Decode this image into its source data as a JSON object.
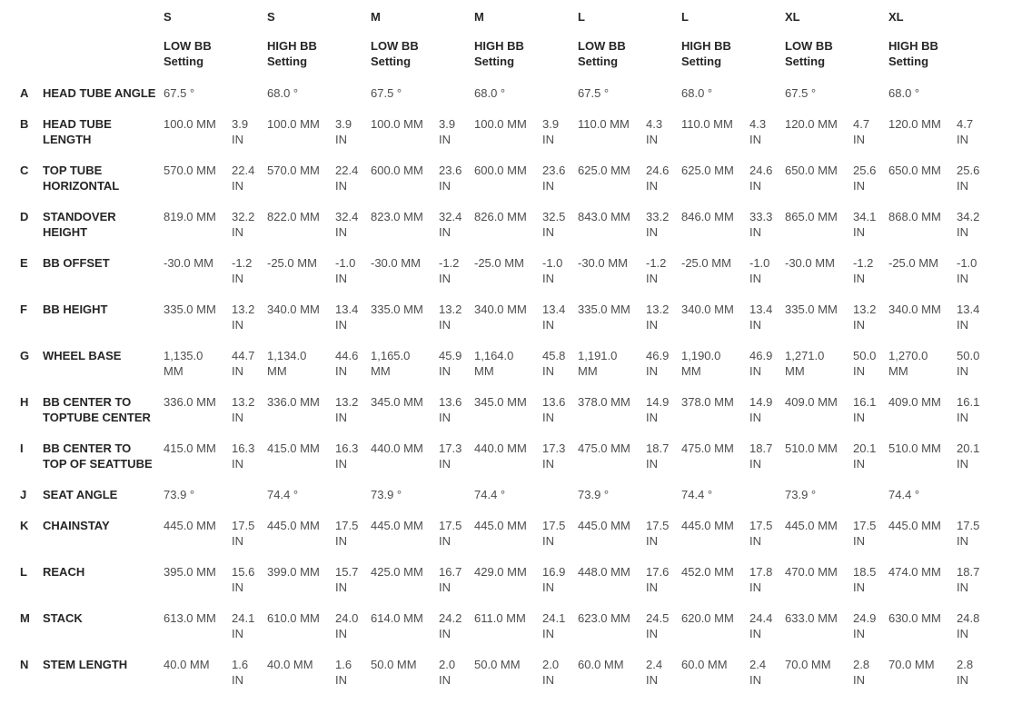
{
  "chart_data": {
    "type": "table",
    "unit_primary": "MM",
    "unit_secondary": "IN",
    "columns": [
      {
        "size": "S",
        "setting": "LOW BB Setting"
      },
      {
        "size": "S",
        "setting": "HIGH BB Setting"
      },
      {
        "size": "M",
        "setting": "LOW BB Setting"
      },
      {
        "size": "M",
        "setting": "HIGH BB Setting"
      },
      {
        "size": "L",
        "setting": "LOW BB Setting"
      },
      {
        "size": "L",
        "setting": "HIGH BB Setting"
      },
      {
        "size": "XL",
        "setting": "LOW BB Setting"
      },
      {
        "size": "XL",
        "setting": "HIGH BB Setting"
      }
    ],
    "rows": [
      {
        "letter": "A",
        "label": "HEAD TUBE ANGLE",
        "type": "angle",
        "values": [
          "67.5 °",
          "68.0 °",
          "67.5 °",
          "68.0 °",
          "67.5 °",
          "68.0 °",
          "67.5 °",
          "68.0 °"
        ]
      },
      {
        "letter": "B",
        "label": "HEAD TUBE LENGTH",
        "type": "length",
        "cells": [
          {
            "mm": "100.0 MM",
            "in": "3.9 IN"
          },
          {
            "mm": "100.0 MM",
            "in": "3.9 IN"
          },
          {
            "mm": "100.0 MM",
            "in": "3.9 IN"
          },
          {
            "mm": "100.0 MM",
            "in": "3.9 IN"
          },
          {
            "mm": "110.0 MM",
            "in": "4.3 IN"
          },
          {
            "mm": "110.0 MM",
            "in": "4.3 IN"
          },
          {
            "mm": "120.0 MM",
            "in": "4.7 IN"
          },
          {
            "mm": "120.0 MM",
            "in": "4.7 IN"
          }
        ]
      },
      {
        "letter": "C",
        "label": "TOP TUBE HORIZONTAL",
        "type": "length",
        "cells": [
          {
            "mm": "570.0 MM",
            "in": "22.4 IN"
          },
          {
            "mm": "570.0 MM",
            "in": "22.4 IN"
          },
          {
            "mm": "600.0 MM",
            "in": "23.6 IN"
          },
          {
            "mm": "600.0 MM",
            "in": "23.6 IN"
          },
          {
            "mm": "625.0 MM",
            "in": "24.6 IN"
          },
          {
            "mm": "625.0 MM",
            "in": "24.6 IN"
          },
          {
            "mm": "650.0 MM",
            "in": "25.6 IN"
          },
          {
            "mm": "650.0 MM",
            "in": "25.6 IN"
          }
        ]
      },
      {
        "letter": "D",
        "label": "STANDOVER HEIGHT",
        "type": "length",
        "cells": [
          {
            "mm": "819.0 MM",
            "in": "32.2 IN"
          },
          {
            "mm": "822.0 MM",
            "in": "32.4 IN"
          },
          {
            "mm": "823.0 MM",
            "in": "32.4 IN"
          },
          {
            "mm": "826.0 MM",
            "in": "32.5 IN"
          },
          {
            "mm": "843.0 MM",
            "in": "33.2 IN"
          },
          {
            "mm": "846.0 MM",
            "in": "33.3 IN"
          },
          {
            "mm": "865.0 MM",
            "in": "34.1 IN"
          },
          {
            "mm": "868.0 MM",
            "in": "34.2 IN"
          }
        ]
      },
      {
        "letter": "E",
        "label": "BB OFFSET",
        "type": "length",
        "cells": [
          {
            "mm": "-30.0 MM",
            "in": "-1.2 IN"
          },
          {
            "mm": "-25.0 MM",
            "in": "-1.0 IN"
          },
          {
            "mm": "-30.0 MM",
            "in": "-1.2 IN"
          },
          {
            "mm": "-25.0 MM",
            "in": "-1.0 IN"
          },
          {
            "mm": "-30.0 MM",
            "in": "-1.2 IN"
          },
          {
            "mm": "-25.0 MM",
            "in": "-1.0 IN"
          },
          {
            "mm": "-30.0 MM",
            "in": "-1.2 IN"
          },
          {
            "mm": "-25.0 MM",
            "in": "-1.0 IN"
          }
        ]
      },
      {
        "letter": "F",
        "label": "BB HEIGHT",
        "type": "length",
        "cells": [
          {
            "mm": "335.0 MM",
            "in": "13.2 IN"
          },
          {
            "mm": "340.0 MM",
            "in": "13.4 IN"
          },
          {
            "mm": "335.0 MM",
            "in": "13.2 IN"
          },
          {
            "mm": "340.0 MM",
            "in": "13.4 IN"
          },
          {
            "mm": "335.0 MM",
            "in": "13.2 IN"
          },
          {
            "mm": "340.0 MM",
            "in": "13.4 IN"
          },
          {
            "mm": "335.0 MM",
            "in": "13.2 IN"
          },
          {
            "mm": "340.0 MM",
            "in": "13.4 IN"
          }
        ]
      },
      {
        "letter": "G",
        "label": "WHEEL BASE",
        "type": "length",
        "cells": [
          {
            "mm": "1,135.0 MM",
            "in": "44.7 IN"
          },
          {
            "mm": "1,134.0 MM",
            "in": "44.6 IN"
          },
          {
            "mm": "1,165.0 MM",
            "in": "45.9 IN"
          },
          {
            "mm": "1,164.0 MM",
            "in": "45.8 IN"
          },
          {
            "mm": "1,191.0 MM",
            "in": "46.9 IN"
          },
          {
            "mm": "1,190.0 MM",
            "in": "46.9 IN"
          },
          {
            "mm": "1,271.0 MM",
            "in": "50.0 IN"
          },
          {
            "mm": "1,270.0 MM",
            "in": "50.0 IN"
          }
        ]
      },
      {
        "letter": "H",
        "label": "BB CENTER TO TOPTUBE CENTER",
        "type": "length",
        "cells": [
          {
            "mm": "336.0 MM",
            "in": "13.2 IN"
          },
          {
            "mm": "336.0 MM",
            "in": "13.2 IN"
          },
          {
            "mm": "345.0 MM",
            "in": "13.6 IN"
          },
          {
            "mm": "345.0 MM",
            "in": "13.6 IN"
          },
          {
            "mm": "378.0 MM",
            "in": "14.9 IN"
          },
          {
            "mm": "378.0 MM",
            "in": "14.9 IN"
          },
          {
            "mm": "409.0 MM",
            "in": "16.1 IN"
          },
          {
            "mm": "409.0 MM",
            "in": "16.1 IN"
          }
        ]
      },
      {
        "letter": "I",
        "label": "BB CENTER TO TOP OF SEATTUBE",
        "type": "length",
        "cells": [
          {
            "mm": "415.0 MM",
            "in": "16.3 IN"
          },
          {
            "mm": "415.0 MM",
            "in": "16.3 IN"
          },
          {
            "mm": "440.0 MM",
            "in": "17.3 IN"
          },
          {
            "mm": "440.0 MM",
            "in": "17.3 IN"
          },
          {
            "mm": "475.0 MM",
            "in": "18.7 IN"
          },
          {
            "mm": "475.0 MM",
            "in": "18.7 IN"
          },
          {
            "mm": "510.0 MM",
            "in": "20.1 IN"
          },
          {
            "mm": "510.0 MM",
            "in": "20.1 IN"
          }
        ]
      },
      {
        "letter": "J",
        "label": "SEAT ANGLE",
        "type": "angle",
        "values": [
          "73.9 °",
          "74.4 °",
          "73.9 °",
          "74.4 °",
          "73.9 °",
          "74.4 °",
          "73.9 °",
          "74.4 °"
        ]
      },
      {
        "letter": "K",
        "label": "CHAINSTAY",
        "type": "length",
        "cells": [
          {
            "mm": "445.0 MM",
            "in": "17.5 IN"
          },
          {
            "mm": "445.0 MM",
            "in": "17.5 IN"
          },
          {
            "mm": "445.0 MM",
            "in": "17.5 IN"
          },
          {
            "mm": "445.0 MM",
            "in": "17.5 IN"
          },
          {
            "mm": "445.0 MM",
            "in": "17.5 IN"
          },
          {
            "mm": "445.0 MM",
            "in": "17.5 IN"
          },
          {
            "mm": "445.0 MM",
            "in": "17.5 IN"
          },
          {
            "mm": "445.0 MM",
            "in": "17.5 IN"
          }
        ]
      },
      {
        "letter": "L",
        "label": "REACH",
        "type": "length",
        "cells": [
          {
            "mm": "395.0 MM",
            "in": "15.6 IN"
          },
          {
            "mm": "399.0 MM",
            "in": "15.7 IN"
          },
          {
            "mm": "425.0 MM",
            "in": "16.7 IN"
          },
          {
            "mm": "429.0 MM",
            "in": "16.9 IN"
          },
          {
            "mm": "448.0 MM",
            "in": "17.6 IN"
          },
          {
            "mm": "452.0 MM",
            "in": "17.8 IN"
          },
          {
            "mm": "470.0 MM",
            "in": "18.5 IN"
          },
          {
            "mm": "474.0 MM",
            "in": "18.7 IN"
          }
        ]
      },
      {
        "letter": "M",
        "label": "STACK",
        "type": "length",
        "cells": [
          {
            "mm": "613.0 MM",
            "in": "24.1 IN"
          },
          {
            "mm": "610.0 MM",
            "in": "24.0 IN"
          },
          {
            "mm": "614.0 MM",
            "in": "24.2 IN"
          },
          {
            "mm": "611.0 MM",
            "in": "24.1 IN"
          },
          {
            "mm": "623.0 MM",
            "in": "24.5 IN"
          },
          {
            "mm": "620.0 MM",
            "in": "24.4 IN"
          },
          {
            "mm": "633.0 MM",
            "in": "24.9 IN"
          },
          {
            "mm": "630.0 MM",
            "in": "24.8 IN"
          }
        ]
      },
      {
        "letter": "N",
        "label": "STEM LENGTH",
        "type": "length",
        "cells": [
          {
            "mm": "40.0 MM",
            "in": "1.6 IN"
          },
          {
            "mm": "40.0 MM",
            "in": "1.6 IN"
          },
          {
            "mm": "50.0 MM",
            "in": "2.0 IN"
          },
          {
            "mm": "50.0 MM",
            "in": "2.0 IN"
          },
          {
            "mm": "60.0 MM",
            "in": "2.4 IN"
          },
          {
            "mm": "60.0 MM",
            "in": "2.4 IN"
          },
          {
            "mm": "70.0 MM",
            "in": "2.8 IN"
          },
          {
            "mm": "70.0 MM",
            "in": "2.8 IN"
          }
        ]
      }
    ],
    "colors": {
      "background": "#ffffff",
      "header_text": "#262626",
      "value_text": "#4d4d4d"
    }
  }
}
